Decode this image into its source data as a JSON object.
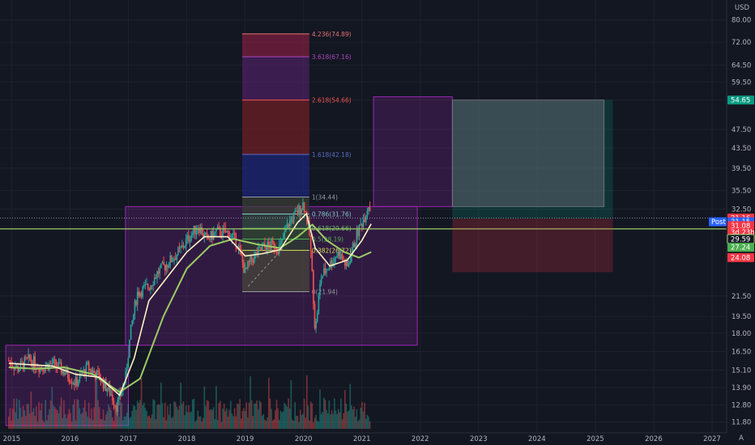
{
  "currency_label": "USD",
  "chart_data": {
    "type": "candlestick",
    "title": "",
    "xlabel": "",
    "ylabel": "",
    "scale": "log",
    "grid": true,
    "x_ticks": [
      "2015",
      "2016",
      "2017",
      "2018",
      "2019",
      "2020",
      "2021",
      "2022",
      "2023",
      "2024",
      "2025",
      "2026",
      "2027"
    ],
    "y_ticks": [
      "80.00",
      "72.00",
      "64.50",
      "59.50",
      "54.65",
      "47.50",
      "43.50",
      "39.50",
      "35.50",
      "32.50",
      "29.59",
      "21.50",
      "19.50",
      "18.00",
      "16.50",
      "15.10",
      "13.90",
      "12.80",
      "11.80"
    ],
    "price_series": [
      {
        "x": 2014.95,
        "y": 15.8
      },
      {
        "x": 2015.1,
        "y": 15.2
      },
      {
        "x": 2015.3,
        "y": 15.9
      },
      {
        "x": 2015.5,
        "y": 15.3
      },
      {
        "x": 2015.7,
        "y": 15.6
      },
      {
        "x": 2015.9,
        "y": 15.0
      },
      {
        "x": 2016.1,
        "y": 14.2
      },
      {
        "x": 2016.3,
        "y": 15.3
      },
      {
        "x": 2016.5,
        "y": 14.6
      },
      {
        "x": 2016.7,
        "y": 13.5
      },
      {
        "x": 2016.8,
        "y": 12.7
      },
      {
        "x": 2016.95,
        "y": 14.5
      },
      {
        "x": 2017.05,
        "y": 18.5
      },
      {
        "x": 2017.15,
        "y": 21.8
      },
      {
        "x": 2017.35,
        "y": 22.5
      },
      {
        "x": 2017.5,
        "y": 24.0
      },
      {
        "x": 2017.7,
        "y": 25.3
      },
      {
        "x": 2017.9,
        "y": 26.8
      },
      {
        "x": 2018.05,
        "y": 28.6
      },
      {
        "x": 2018.2,
        "y": 30.0
      },
      {
        "x": 2018.35,
        "y": 28.0
      },
      {
        "x": 2018.5,
        "y": 29.2
      },
      {
        "x": 2018.7,
        "y": 29.0
      },
      {
        "x": 2018.85,
        "y": 28.0
      },
      {
        "x": 2019.0,
        "y": 24.0
      },
      {
        "x": 2019.1,
        "y": 25.5
      },
      {
        "x": 2019.3,
        "y": 27.0
      },
      {
        "x": 2019.5,
        "y": 27.5
      },
      {
        "x": 2019.6,
        "y": 27.0
      },
      {
        "x": 2019.75,
        "y": 30.5
      },
      {
        "x": 2019.9,
        "y": 32.0
      },
      {
        "x": 2020.0,
        "y": 33.5
      },
      {
        "x": 2020.1,
        "y": 29.0
      },
      {
        "x": 2020.2,
        "y": 18.0
      },
      {
        "x": 2020.3,
        "y": 23.5
      },
      {
        "x": 2020.45,
        "y": 25.0
      },
      {
        "x": 2020.6,
        "y": 26.5
      },
      {
        "x": 2020.75,
        "y": 24.5
      },
      {
        "x": 2020.9,
        "y": 28.5
      },
      {
        "x": 2021.05,
        "y": 31.5
      },
      {
        "x": 2021.12,
        "y": 33.5
      },
      {
        "x": 2021.16,
        "y": 31.2
      }
    ],
    "ma_fast": [
      {
        "x": 2014.95,
        "y": 15.6
      },
      {
        "x": 2015.3,
        "y": 15.5
      },
      {
        "x": 2015.7,
        "y": 15.4
      },
      {
        "x": 2016.1,
        "y": 14.8
      },
      {
        "x": 2016.5,
        "y": 14.6
      },
      {
        "x": 2016.85,
        "y": 13.4
      },
      {
        "x": 2017.1,
        "y": 16.0
      },
      {
        "x": 2017.35,
        "y": 21.0
      },
      {
        "x": 2017.7,
        "y": 23.8
      },
      {
        "x": 2018.0,
        "y": 26.5
      },
      {
        "x": 2018.3,
        "y": 28.5
      },
      {
        "x": 2018.7,
        "y": 28.5
      },
      {
        "x": 2019.0,
        "y": 26.0
      },
      {
        "x": 2019.3,
        "y": 26.3
      },
      {
        "x": 2019.6,
        "y": 26.8
      },
      {
        "x": 2019.9,
        "y": 30.5
      },
      {
        "x": 2020.05,
        "y": 31.8
      },
      {
        "x": 2020.2,
        "y": 27.0
      },
      {
        "x": 2020.45,
        "y": 24.8
      },
      {
        "x": 2020.75,
        "y": 25.5
      },
      {
        "x": 2021.0,
        "y": 28.0
      },
      {
        "x": 2021.16,
        "y": 30.3
      }
    ],
    "ma_slow": [
      {
        "x": 2014.95,
        "y": 15.3
      },
      {
        "x": 2015.4,
        "y": 15.2
      },
      {
        "x": 2015.9,
        "y": 15.3
      },
      {
        "x": 2016.4,
        "y": 14.8
      },
      {
        "x": 2016.85,
        "y": 13.6
      },
      {
        "x": 2017.2,
        "y": 14.5
      },
      {
        "x": 2017.6,
        "y": 19.5
      },
      {
        "x": 2018.0,
        "y": 24.5
      },
      {
        "x": 2018.4,
        "y": 27.3
      },
      {
        "x": 2018.8,
        "y": 28.2
      },
      {
        "x": 2019.2,
        "y": 27.5
      },
      {
        "x": 2019.6,
        "y": 27.0
      },
      {
        "x": 2019.9,
        "y": 28.5
      },
      {
        "x": 2020.15,
        "y": 30.2
      },
      {
        "x": 2020.4,
        "y": 28.0
      },
      {
        "x": 2020.7,
        "y": 26.5
      },
      {
        "x": 2020.95,
        "y": 25.8
      },
      {
        "x": 2021.16,
        "y": 26.5
      }
    ],
    "horizontal_line": {
      "y": 29.59,
      "color": "#9ccc65"
    },
    "price_dotted_line": {
      "y": 31.16
    },
    "boxes": [
      {
        "x0": 2014.9,
        "x1": 2017.0,
        "y0": 11.6,
        "y1": 17.0,
        "color": "#9c27b0"
      },
      {
        "x0": 2016.95,
        "x1": 2021.95,
        "y0": 17.0,
        "y1": 32.9,
        "color": "#9c27b0"
      },
      {
        "x0": 2021.2,
        "x1": 2022.55,
        "y0": 32.9,
        "y1": 55.5,
        "color": "#9c27b0"
      }
    ],
    "fib_levels": [
      {
        "label": "4.236(74.89)",
        "y": 74.89,
        "color": "#e57373",
        "fill": "#7b1f3e"
      },
      {
        "label": "3.618(67.16)",
        "y": 67.16,
        "color": "#ab47bc",
        "fill": "#4a2060"
      },
      {
        "label": "2.618(54.66)",
        "y": 54.66,
        "color": "#ef5350",
        "fill": "#6d1f25"
      },
      {
        "label": "1.618(42.18)",
        "y": 42.18,
        "color": "#5c6bc0",
        "fill": "#1c2575"
      },
      {
        "label": "1(34.44)",
        "y": 34.44,
        "color": "#9598a1",
        "fill": "#3a3d35"
      },
      {
        "label": "0.786(31.76)",
        "y": 31.76,
        "color": "#80cbc4",
        "fill": "#2d4a3c"
      },
      {
        "label": "0.618(29.66)",
        "y": 29.66,
        "color": "#66bb6a",
        "fill": "#2e4a2e"
      },
      {
        "label": "0.5(28.19)",
        "y": 28.19,
        "color": "#4caf50",
        "fill": "#2d3d33"
      },
      {
        "label": "0.382(26.72)",
        "y": 26.72,
        "color": "#d4e157",
        "fill": "#45463a"
      },
      {
        "label": "0(21.94)",
        "y": 21.94,
        "color": "#9598a1",
        "fill": "#4a2a30"
      }
    ],
    "fib_x": [
      2018.95,
      2020.1
    ],
    "position_tool": {
      "x0": 2022.55,
      "x1": 2025.3,
      "entry": 31.08,
      "target": 54.65,
      "stop": 24.08
    },
    "price_badges": [
      {
        "text": "54.65",
        "y": 54.65,
        "bg": "#089981"
      },
      {
        "text": "31.16",
        "y": 31.16,
        "bg": "#f23645"
      },
      {
        "text": "31.15",
        "y": 30.6,
        "bg": "#2962ff",
        "tag": "Post"
      },
      {
        "text": "31.08",
        "y": 30.05,
        "bg": "#f23645"
      },
      {
        "text": "3d 23h",
        "y": 29.1,
        "bg": "#f23645"
      },
      {
        "text": "29.59",
        "y": 28.2,
        "bg": "#131722"
      },
      {
        "text": "27.24",
        "y": 27.1,
        "bg": "#4caf50"
      },
      {
        "text": "24.08",
        "y": 25.8,
        "bg": "#f23645"
      }
    ]
  }
}
